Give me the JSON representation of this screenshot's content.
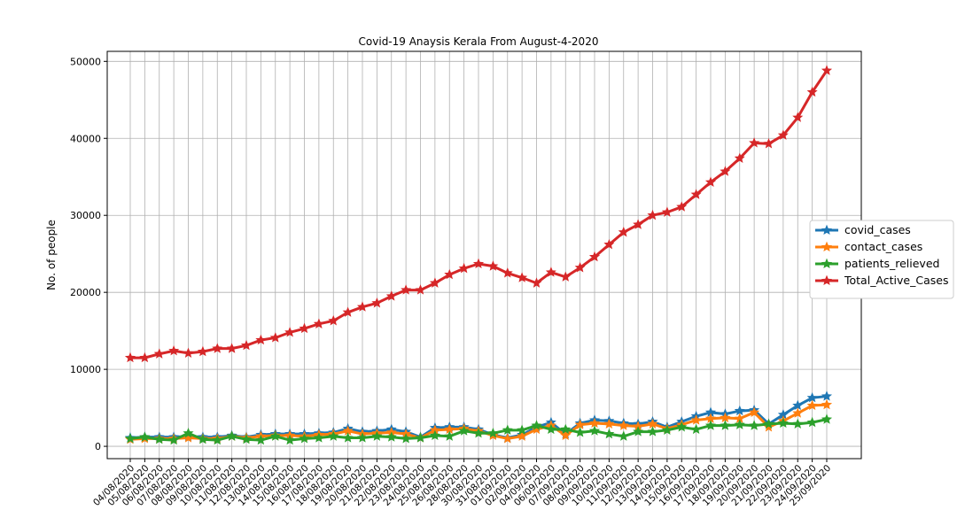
{
  "chart_data": {
    "type": "line",
    "title": "Covid-19 Anaysis Kerala From August-4-2020",
    "y_label": "No. of people",
    "categories": [
      "04/08/2020",
      "05/08/2020",
      "06/08/2020",
      "07/08/2020",
      "08/08/2020",
      "09/08/2020",
      "10/08/2020",
      "11/08/2020",
      "12/08/2020",
      "13/08/2020",
      "14/08/2020",
      "15/08/2020",
      "16/08/2020",
      "17/08/2020",
      "18/08/2020",
      "19/08/2020",
      "20/08/2020",
      "21/08/2020",
      "22/08/2020",
      "23/08/2020",
      "24/08/2020",
      "25/08/2020",
      "26/08/2020",
      "28/08/2020",
      "30/08/2020",
      "31/08/2020",
      "01/09/2020",
      "02/09/2020",
      "04/09/2020",
      "06/09/2020",
      "07/09/2020",
      "08/09/2020",
      "09/09/2020",
      "10/09/2020",
      "11/09/2020",
      "12/09/2020",
      "13/09/2020",
      "14/09/2020",
      "15/09/2020",
      "16/09/2020",
      "17/09/2020",
      "18/09/2020",
      "19/09/2020",
      "20/09/2020",
      "21/09/2020",
      "22/09/2020",
      "23/09/2020",
      "24/09/2020",
      "25/09/2020"
    ],
    "series": [
      {
        "name": "covid_cases",
        "color": "#1f77b4",
        "values": [
          1100,
          1200,
          1200,
          1200,
          1300,
          1200,
          1200,
          1400,
          1200,
          1500,
          1600,
          1600,
          1600,
          1700,
          1800,
          2300,
          1900,
          2000,
          2200,
          1900,
          1200,
          2400,
          2500,
          2500,
          2200,
          1500,
          1100,
          1500,
          2500,
          3100,
          1600,
          3000,
          3400,
          3300,
          3000,
          2900,
          3200,
          2500,
          3200,
          3900,
          4400,
          4200,
          4600,
          4700,
          2900,
          4100,
          5300,
          6300,
          6500
        ]
      },
      {
        "name": "contact_cases",
        "color": "#ff7f0e",
        "values": [
          900,
          1000,
          1000,
          1000,
          1100,
          1000,
          1000,
          1300,
          1100,
          1300,
          1400,
          1400,
          1300,
          1500,
          1600,
          2000,
          1600,
          1700,
          1800,
          1600,
          1100,
          2100,
          2200,
          2300,
          2000,
          1400,
          1000,
          1300,
          2200,
          2700,
          1400,
          2800,
          3000,
          2900,
          2700,
          2600,
          2900,
          2300,
          2800,
          3400,
          3600,
          3700,
          3600,
          4400,
          2500,
          3300,
          4300,
          5300,
          5400
        ]
      },
      {
        "name": "patients_relieved",
        "color": "#2ca02c",
        "values": [
          1000,
          1200,
          900,
          800,
          1700,
          900,
          800,
          1300,
          900,
          800,
          1300,
          800,
          1000,
          1100,
          1300,
          1100,
          1100,
          1300,
          1200,
          1000,
          1100,
          1400,
          1300,
          2000,
          1700,
          1700,
          2100,
          2100,
          2700,
          2200,
          2200,
          1800,
          2000,
          1600,
          1300,
          1900,
          1900,
          2100,
          2500,
          2200,
          2700,
          2700,
          2800,
          2700,
          2900,
          3000,
          2900,
          3100,
          3500
        ]
      },
      {
        "name": "Total_Active_Cases",
        "color": "#d62728",
        "values": [
          11500,
          11500,
          12000,
          12400,
          12100,
          12300,
          12700,
          12700,
          13100,
          13800,
          14100,
          14800,
          15300,
          15900,
          16300,
          17400,
          18100,
          18600,
          19500,
          20300,
          20300,
          21200,
          22300,
          23100,
          23700,
          23400,
          22500,
          21900,
          21200,
          22600,
          22000,
          23200,
          24600,
          26200,
          27800,
          28800,
          30000,
          30400,
          31100,
          32700,
          34300,
          35700,
          37400,
          39400,
          39300,
          40400,
          42700,
          46000,
          48800
        ]
      }
    ],
    "ylim": [
      -1600,
      51300
    ],
    "yticks": [
      0,
      10000,
      20000,
      30000,
      40000,
      50000
    ],
    "grid": true,
    "legend": "right"
  }
}
